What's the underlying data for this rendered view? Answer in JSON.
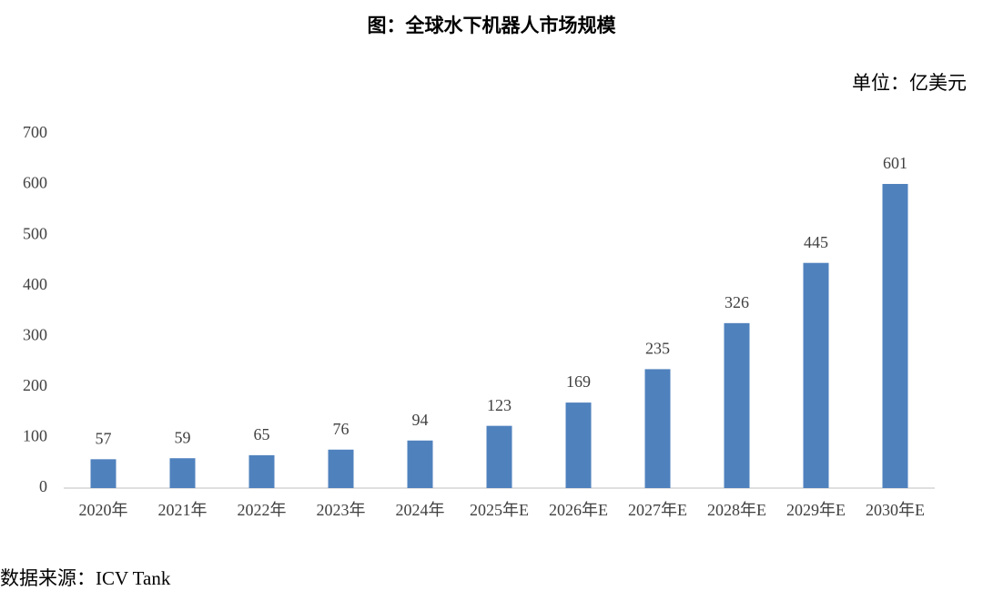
{
  "chart_data": {
    "type": "bar",
    "title": "图：全球水下机器人市场规模",
    "unit_label": "单位：亿美元",
    "source": "数据来源：ICV Tank",
    "categories": [
      "2020年",
      "2021年",
      "2022年",
      "2023年",
      "2024年",
      "2025年E",
      "2026年E",
      "2027年E",
      "2028年E",
      "2029年E",
      "2030年E"
    ],
    "values": [
      57,
      59,
      65,
      76,
      94,
      123,
      169,
      235,
      326,
      445,
      601
    ],
    "color": "#4f81bd",
    "ylim": [
      0,
      700
    ],
    "yticks": [
      0,
      100,
      200,
      300,
      400,
      500,
      600,
      700
    ],
    "grid": false
  }
}
